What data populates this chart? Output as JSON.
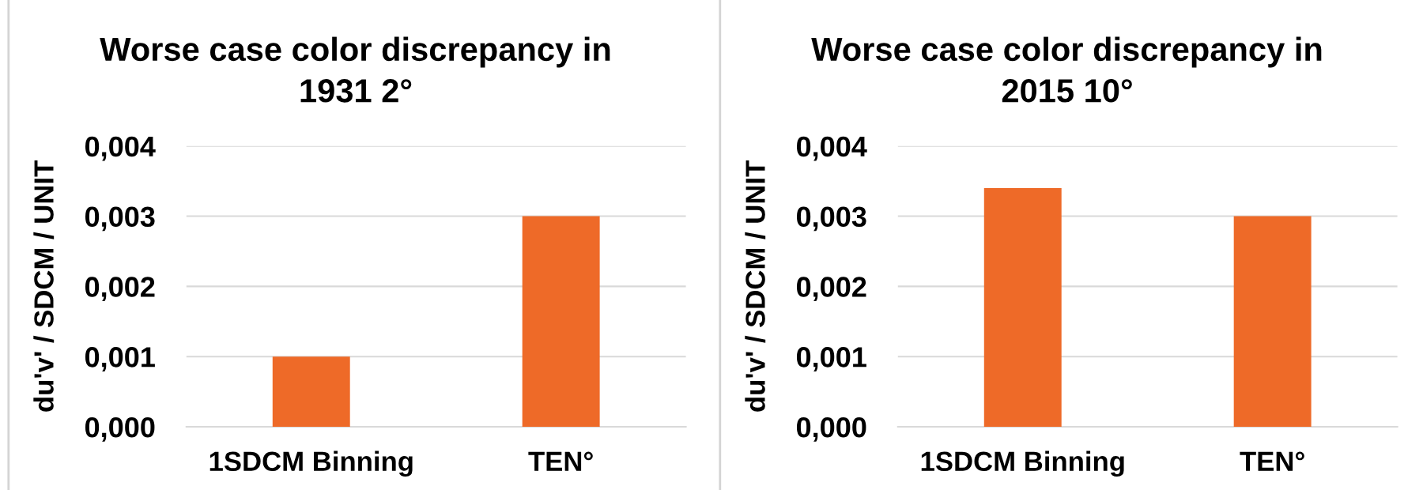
{
  "chart_data": [
    {
      "type": "bar",
      "title": "Worse case color discrepancy in\n1931 2°",
      "ylabel": "du'v' / SDCM / UNIT",
      "categories": [
        "1SDCM Binning",
        "TEN°"
      ],
      "values": [
        0.001,
        0.003
      ],
      "color": "#ee6a28",
      "ylim": [
        0,
        0.004
      ],
      "yticks": [
        {
          "value": 0,
          "label": "0,000"
        },
        {
          "value": 0.001,
          "label": "0,001"
        },
        {
          "value": 0.002,
          "label": "0,002"
        },
        {
          "value": 0.003,
          "label": "0,003"
        },
        {
          "value": 0.004,
          "label": "0,004"
        }
      ],
      "grid": "y"
    },
    {
      "type": "bar",
      "title": "Worse case color discrepancy in\n2015 10°",
      "ylabel": "du'v' / SDCM / UNIT",
      "categories": [
        "1SDCM Binning",
        "TEN°"
      ],
      "values": [
        0.0034,
        0.003
      ],
      "color": "#ee6a28",
      "ylim": [
        0,
        0.004
      ],
      "yticks": [
        {
          "value": 0,
          "label": "0,000"
        },
        {
          "value": 0.001,
          "label": "0,001"
        },
        {
          "value": 0.002,
          "label": "0,002"
        },
        {
          "value": 0.003,
          "label": "0,003"
        },
        {
          "value": 0.004,
          "label": "0,004"
        }
      ],
      "grid": "y"
    }
  ]
}
